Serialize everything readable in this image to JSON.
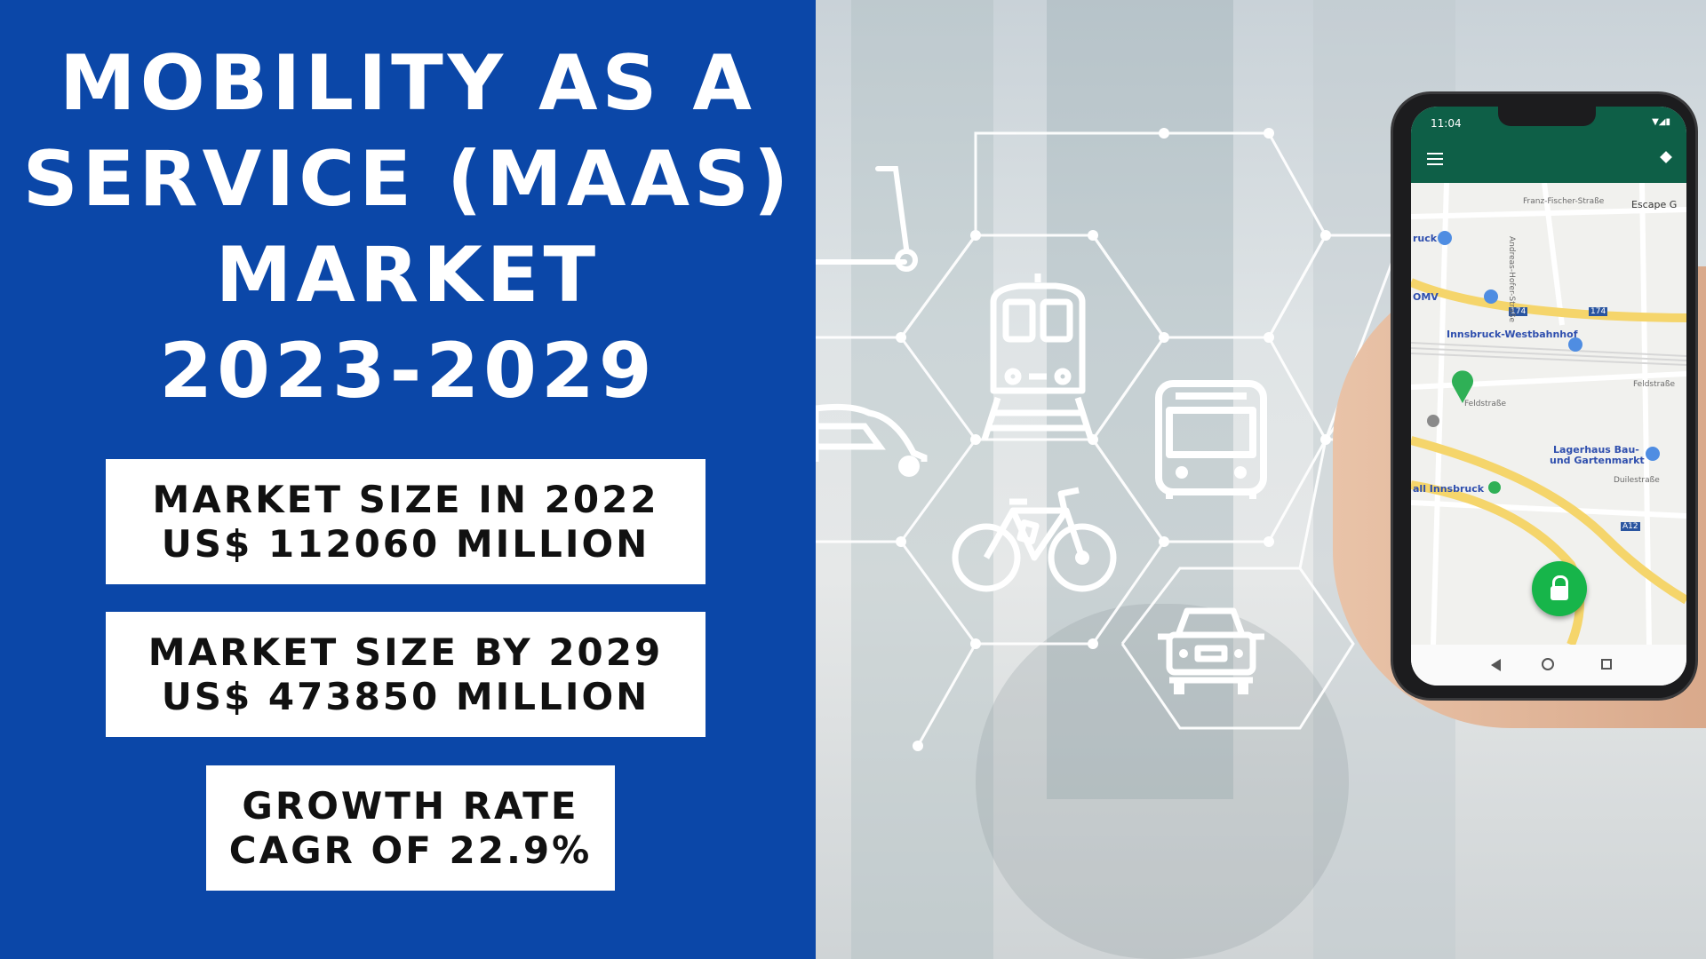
{
  "title": {
    "lines": [
      "MOBILITY AS A",
      "SERVICE (MAAS)",
      "MARKET",
      "2023-2029"
    ]
  },
  "stats": [
    {
      "line1": "MARKET SIZE IN 2022",
      "line2": "US$ 112060 MILLION"
    },
    {
      "line1": "MARKET SIZE BY 2029",
      "line2": "US$ 473850 MILLION"
    },
    {
      "line1": "GROWTH RATE",
      "line2": "CAGR OF 22.9%"
    }
  ],
  "colors": {
    "panel_blue": "#0b47a8",
    "box_white": "#ffffff",
    "app_green": "#0e5f47",
    "fab_green": "#17b54a"
  },
  "phone": {
    "time": "11:04",
    "map_labels": {
      "escape": "Escape G",
      "station": "Innsbruck-Westbahnhof",
      "omv": "OMV",
      "lagerhaus1": "Lagerhaus Bau-",
      "lagerhaus2": "und Gartenmarkt",
      "innsbruck": "all Innsbruck",
      "street1": "Franz-Fischer-Straße",
      "street2": "Feldstraße",
      "street3": "Duilestraße",
      "street4": "Andreas-Hofer-Straße",
      "road_num": "174",
      "highway": "A12",
      "ruck": "ruck"
    }
  },
  "icons": [
    "scooter-icon",
    "train-icon",
    "car-icon",
    "bus-icon",
    "bicycle-icon",
    "taxi-icon"
  ]
}
